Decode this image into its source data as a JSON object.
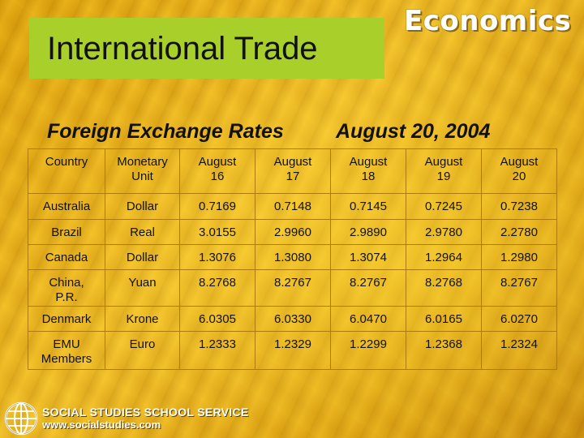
{
  "slide": {
    "title": "International Trade",
    "brand": "Economics",
    "subtitle_left": "Foreign Exchange Rates",
    "subtitle_right": "August 20, 2004"
  },
  "table": {
    "headers": [
      [
        "Country"
      ],
      [
        "Monetary",
        "Unit"
      ],
      [
        "August",
        "16"
      ],
      [
        "August",
        "17"
      ],
      [
        "August",
        "18"
      ],
      [
        "August",
        "19"
      ],
      [
        "August",
        "20"
      ]
    ],
    "rows": [
      [
        [
          "Australia"
        ],
        [
          "Dollar"
        ],
        [
          "0.7169"
        ],
        [
          "0.7148"
        ],
        [
          "0.7145"
        ],
        [
          "0.7245"
        ],
        [
          "0.7238"
        ]
      ],
      [
        [
          "Brazil"
        ],
        [
          "Real"
        ],
        [
          "3.0155"
        ],
        [
          "2.9960"
        ],
        [
          "2.9890"
        ],
        [
          "2.9780"
        ],
        [
          "2.2780"
        ]
      ],
      [
        [
          "Canada"
        ],
        [
          "Dollar"
        ],
        [
          "1.3076"
        ],
        [
          "1.3080"
        ],
        [
          "1.3074"
        ],
        [
          "1.2964"
        ],
        [
          "1.2980"
        ]
      ],
      [
        [
          "China,",
          "P.R."
        ],
        [
          "Yuan"
        ],
        [
          "8.2768"
        ],
        [
          "8.2767"
        ],
        [
          "8.2767"
        ],
        [
          "8.2768"
        ],
        [
          "8.2767"
        ]
      ],
      [
        [
          "Denmark"
        ],
        [
          "Krone"
        ],
        [
          "6.0305"
        ],
        [
          "6.0330"
        ],
        [
          "6.0470"
        ],
        [
          "6.0165"
        ],
        [
          "6.0270"
        ]
      ],
      [
        [
          "EMU",
          "Members"
        ],
        [
          "Euro"
        ],
        [
          "1.2333"
        ],
        [
          "1.2329"
        ],
        [
          "1.2299"
        ],
        [
          "1.2368"
        ],
        [
          "1.2324"
        ]
      ]
    ]
  },
  "footer": {
    "publisher": "SOCIAL STUDIES SCHOOL SERVICE",
    "url": "www.socialstudies.com",
    "logo_icon": "globe-icon"
  }
}
